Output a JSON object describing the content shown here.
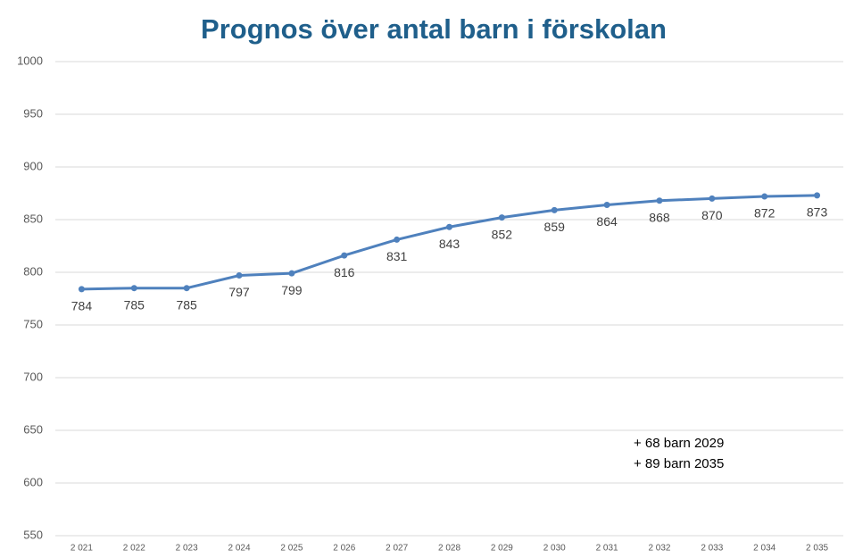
{
  "chart_data": {
    "type": "line",
    "title": "Prognos över antal barn i förskolan",
    "categories": [
      "2 021",
      "2 022",
      "2 023",
      "2 024",
      "2 025",
      "2 026",
      "2 027",
      "2 028",
      "2 029",
      "2 030",
      "2 031",
      "2 032",
      "2 033",
      "2 034",
      "2 035"
    ],
    "series": [
      {
        "name": "Antal barn",
        "color": "#4f81bd",
        "values": [
          784,
          785,
          785,
          797,
          799,
          816,
          831,
          843,
          852,
          859,
          864,
          868,
          870,
          872,
          873
        ]
      }
    ],
    "ylim": [
      550,
      1000
    ],
    "yticks": [
      550,
      600,
      650,
      700,
      750,
      800,
      850,
      900,
      950,
      1000
    ],
    "grid": true,
    "annotations": [
      "+ 68 barn 2029",
      "+ 89 barn 2035"
    ]
  }
}
